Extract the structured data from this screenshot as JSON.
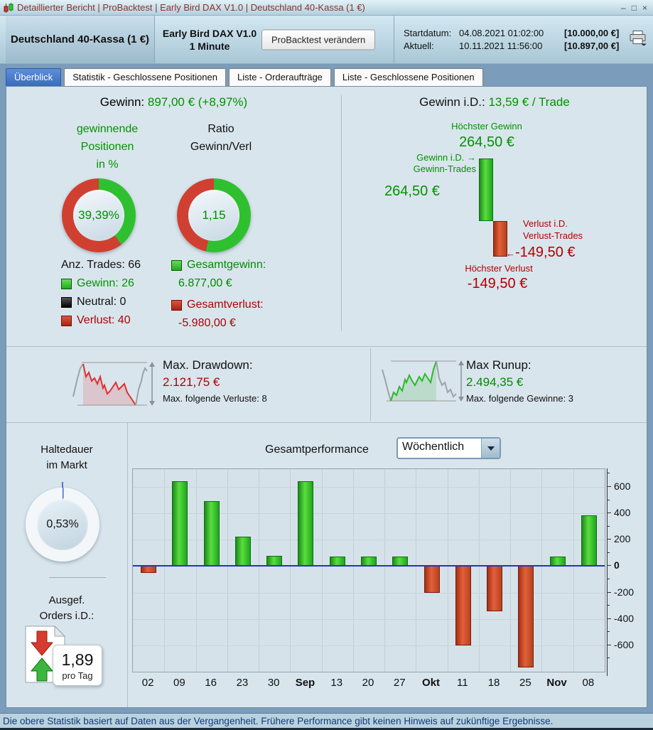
{
  "titlebar": {
    "title": "Detaillierter Bericht | ProBacktest | Early Bird DAX V1.0 | Deutschland 40-Kassa (1 €)",
    "minimize": "–",
    "maximize": "□",
    "close": "×"
  },
  "header": {
    "instrument": "Deutschland 40-Kassa (1 €)",
    "strategy_line1": "Early Bird DAX V1.0",
    "strategy_line2": "1 Minute",
    "modify_button": "ProBacktest verändern",
    "start_label": "Startdatum:",
    "start_value": "04.08.2021 01:02:00",
    "start_amount": "[10.000,00 €]",
    "current_label": "Aktuell:",
    "current_value": "10.11.2021 11:56:00",
    "current_amount": "[10.897,00 €]"
  },
  "tabs": [
    {
      "label": "Überblick",
      "active": true
    },
    {
      "label": "Statistik - Geschlossene Positionen",
      "active": false
    },
    {
      "label": "Liste - Orderaufträge",
      "active": false
    },
    {
      "label": "Liste - Geschlossene Positionen",
      "active": false
    }
  ],
  "overview": {
    "gewinn_label": "Gewinn:",
    "gewinn_value": " 897,00 € (+8,97%)",
    "col1_line1": "gewinnende",
    "col1_line2": "Positionen",
    "col1_line3": "in %",
    "col2_line1": "Ratio",
    "col2_line2": "Gewinn/Verl",
    "donut_win": {
      "pct": 39.39,
      "label": "39,39%"
    },
    "donut_ratio": {
      "ratio": 1.15,
      "label": "1,15"
    },
    "legend": {
      "trades": "Anz. Trades: 66",
      "gewinn": "Gewinn: 26",
      "neutral": "Neutral: 0",
      "verlust": "Verlust: 40",
      "gesamtgewinn_label": "Gesamtgewinn:",
      "gesamtgewinn_value": "6.877,00 €",
      "gesamtverlust_label": "Gesamtverlust:",
      "gesamtverlust_value": "-5.980,00 €"
    }
  },
  "per_trade": {
    "title_label": "Gewinn i.D.: ",
    "title_value": "13,59 € / Trade",
    "hoechster_gewinn_label": "Höchster Gewinn",
    "hoechster_gewinn_value": "264,50 €",
    "gewinn_id_line1": "Gewinn i.D.",
    "gewinn_id_line2": "Gewinn-Trades",
    "arrow_right": "→",
    "gewinn_id_value": "264,50 €",
    "verlust_id_line1": "Verlust i.D.",
    "verlust_id_line2": "Verlust-Trades",
    "arrow_left": "←",
    "verlust_id_value": "-149,50 €",
    "hoechster_verlust_label": "Höchster Verlust",
    "hoechster_verlust_value": "-149,50 €"
  },
  "drawdown": {
    "label": "Max. Drawdown:",
    "value": "2.121,75 €",
    "sub": "Max. folgende Verluste: 8"
  },
  "runup": {
    "label": "Max Runup:",
    "value": "2.494,35 €",
    "sub": "Max. folgende Gewinne: 3"
  },
  "holding": {
    "label_line1": "Haltedauer",
    "label_line2": "im Markt",
    "pct": 0.53,
    "value": "0,53%"
  },
  "orders": {
    "label_line1": "Ausgef.",
    "label_line2": "Orders i.D.:",
    "value": "1,89",
    "unit": "pro Tag"
  },
  "performance": {
    "title": "Gesamtperformance",
    "dropdown_value": "Wöchentlich"
  },
  "chart_data": {
    "type": "bar",
    "title": "Gesamtperformance",
    "categories": [
      "02",
      "09",
      "16",
      "23",
      "30",
      "Sep",
      "13",
      "20",
      "27",
      "Okt",
      "11",
      "18",
      "25",
      "Nov",
      "08"
    ],
    "values": [
      -50,
      645,
      490,
      225,
      80,
      645,
      75,
      70,
      75,
      -200,
      -600,
      -340,
      -770,
      75,
      385
    ],
    "bold_categories": [
      "Sep",
      "Okt",
      "Nov"
    ],
    "yticks": [
      600,
      400,
      200,
      0,
      -200,
      -400,
      -600
    ],
    "minor_yticks": [
      700,
      500,
      300,
      100,
      -100,
      -300,
      -500,
      -700
    ],
    "ylim": [
      -800,
      735
    ],
    "xlabel": "",
    "ylabel": "",
    "colors": {
      "positive": "#2fbf2f",
      "negative": "#c94a26",
      "zero_line": "#2233cc"
    }
  },
  "footer": {
    "text": "Die obere Statistik basiert auf Daten aus der Vergangenheit. Frühere Performance gibt keinen Hinweis auf zukünftige Ergebnisse."
  }
}
